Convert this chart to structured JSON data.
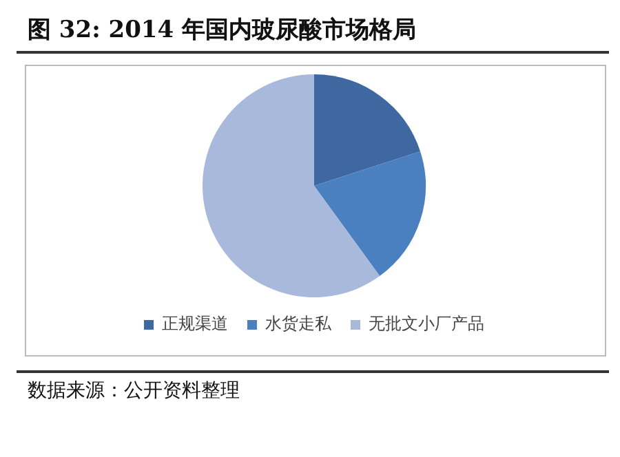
{
  "chart_data": {
    "type": "pie",
    "title": "图  32:  2014 年国内玻尿酸市场格局",
    "categories": [
      "正规渠道",
      "水货走私",
      "无批文小厂产品"
    ],
    "values": [
      20,
      20,
      60
    ],
    "colors": [
      "#3f67a0",
      "#4a7fc0",
      "#a9b9dc"
    ],
    "legend": "bottom",
    "annotations": [
      "数据来源：公开资料整理"
    ]
  }
}
